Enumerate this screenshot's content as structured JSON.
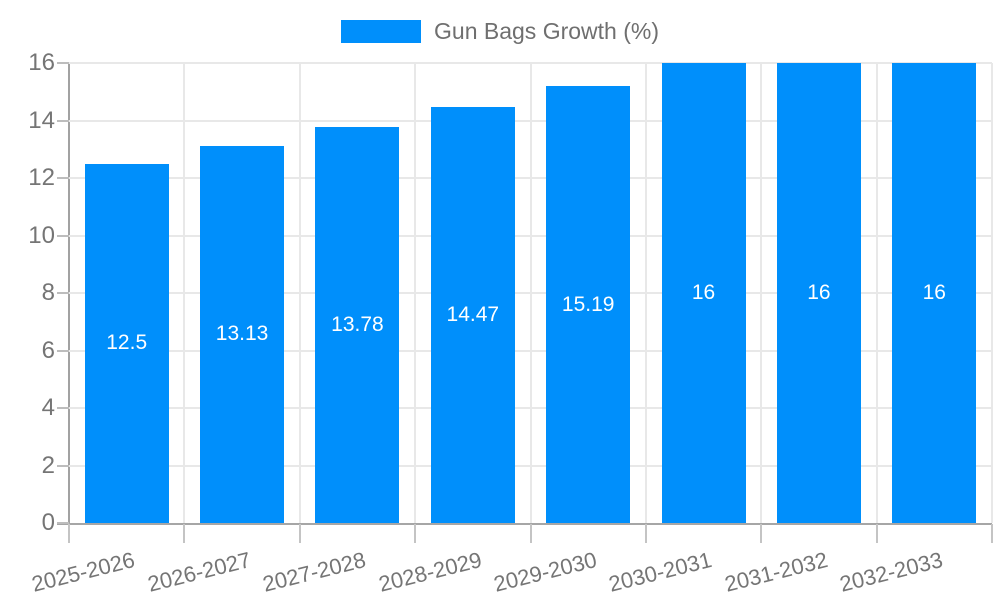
{
  "legend": {
    "label": "Gun Bags Growth (%)",
    "swatch_color": "#008FFB"
  },
  "chart_data": {
    "type": "bar",
    "title": "",
    "series_name": "Gun Bags Growth (%)",
    "categories": [
      "2025-2026",
      "2026-2027",
      "2027-2028",
      "2028-2029",
      "2029-2030",
      "2030-2031",
      "2031-2032",
      "2032-2033"
    ],
    "values": [
      12.5,
      13.13,
      13.78,
      14.47,
      15.19,
      16,
      16,
      16
    ],
    "data_labels": [
      "12.5",
      "13.13",
      "13.78",
      "14.47",
      "15.19",
      "16",
      "16",
      "16"
    ],
    "xlabel": "",
    "ylabel": "",
    "ylim": [
      0,
      16
    ],
    "yticks": [
      0,
      2,
      4,
      6,
      8,
      10,
      12,
      14,
      16
    ],
    "grid": "horizontal-and-vertical",
    "legend_position": "top-center",
    "bar_color": "#008FFB",
    "value_label_color": "#ffffff",
    "axis_text_color": "#757575",
    "grid_color": "#e8e8e8"
  }
}
